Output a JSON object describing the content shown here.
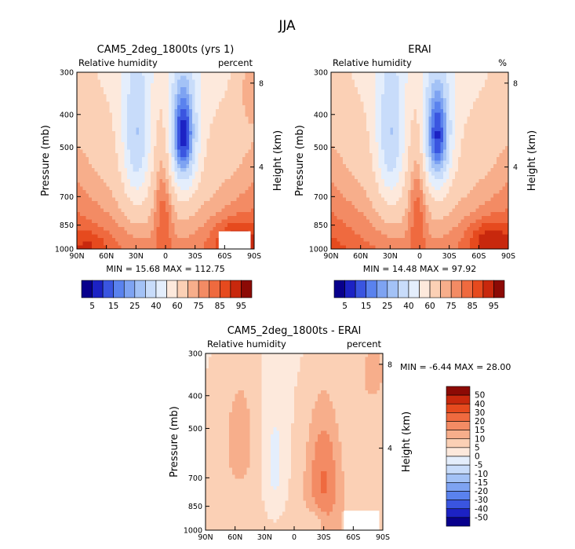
{
  "chart_data": {
    "type": "heatmap",
    "title": "JJA",
    "panels": [
      {
        "id": "cam5",
        "title": "CAM5_2deg_1800ts (yrs 1)",
        "left_label": "Relative humidity",
        "right_label": "percent",
        "xlabel": "",
        "ylabel": "Pressure (mb)",
        "y2label": "Height (km)",
        "x_ticks": [
          "90N",
          "60N",
          "30N",
          "0",
          "30S",
          "60S",
          "90S"
        ],
        "y_ticks": [
          "300",
          "400",
          "500",
          "700",
          "850",
          "1000"
        ],
        "y_tick_values": [
          300,
          400,
          500,
          700,
          850,
          1000
        ],
        "y2_ticks": [
          "8",
          "4"
        ],
        "y2_tick_values": [
          8,
          4
        ],
        "ylim": [
          300,
          1000
        ],
        "xlim": [
          90,
          -90
        ],
        "stats": "MIN =   15.68   MAX =  112.75",
        "colorbar_labels": [
          "5",
          "15",
          "25",
          "40",
          "60",
          "75",
          "85",
          "95"
        ]
      },
      {
        "id": "erai",
        "title": "ERAI",
        "left_label": "Relative humidity",
        "right_label": "%",
        "xlabel": "",
        "ylabel": "Pressure (mb)",
        "y2label": "Height (km)",
        "x_ticks": [
          "90N",
          "60N",
          "30N",
          "0",
          "30S",
          "60S",
          "90S"
        ],
        "y_ticks": [
          "300",
          "400",
          "500",
          "700",
          "850",
          "1000"
        ],
        "y_tick_values": [
          300,
          400,
          500,
          700,
          850,
          1000
        ],
        "y2_ticks": [
          "8",
          "4"
        ],
        "y2_tick_values": [
          8,
          4
        ],
        "ylim": [
          300,
          1000
        ],
        "xlim": [
          90,
          -90
        ],
        "stats": "MIN =   14.48   MAX =   97.92",
        "colorbar_labels": [
          "5",
          "15",
          "25",
          "40",
          "60",
          "75",
          "85",
          "95"
        ]
      },
      {
        "id": "diff",
        "title": "CAM5_2deg_1800ts - ERAI",
        "left_label": "Relative humidity",
        "right_label": "percent",
        "xlabel": "",
        "ylabel": "Pressure (mb)",
        "y2label": "Height (km)",
        "x_ticks": [
          "90N",
          "60N",
          "30N",
          "0",
          "30S",
          "60S",
          "90S"
        ],
        "y_ticks": [
          "300",
          "400",
          "500",
          "700",
          "850",
          "1000"
        ],
        "y_tick_values": [
          300,
          400,
          500,
          700,
          850,
          1000
        ],
        "y2_ticks": [
          "8",
          "4"
        ],
        "y2_tick_values": [
          8,
          4
        ],
        "ylim": [
          300,
          1000
        ],
        "xlim": [
          90,
          -90
        ],
        "stats": "MIN =   -6.44   MAX =   28.00",
        "colorbar_labels": [
          "50",
          "40",
          "30",
          "20",
          "15",
          "10",
          "5",
          "0",
          "-5",
          "-10",
          "-15",
          "-20",
          "-30",
          "-40",
          "-50"
        ]
      }
    ],
    "abs_colors": [
      "#08008c",
      "#1c22c4",
      "#3a55e0",
      "#5a82ee",
      "#7ea3f2",
      "#a3c2f6",
      "#c8dcfa",
      "#e4eefc",
      "#fde9dc",
      "#fbd0b5",
      "#f7ae8b",
      "#f38b64",
      "#ef6a3f",
      "#e64a1e",
      "#c8280d",
      "#8c0a05"
    ],
    "diff_colors": [
      "#8c0a05",
      "#c8280d",
      "#e64a1e",
      "#ef6a3f",
      "#f38b64",
      "#f7ae8b",
      "#fbd0b5",
      "#fde9dc",
      "#e4eefc",
      "#c8dcfa",
      "#a3c2f6",
      "#7ea3f2",
      "#5a82ee",
      "#3a55e0",
      "#1c22c4",
      "#08008c"
    ]
  }
}
